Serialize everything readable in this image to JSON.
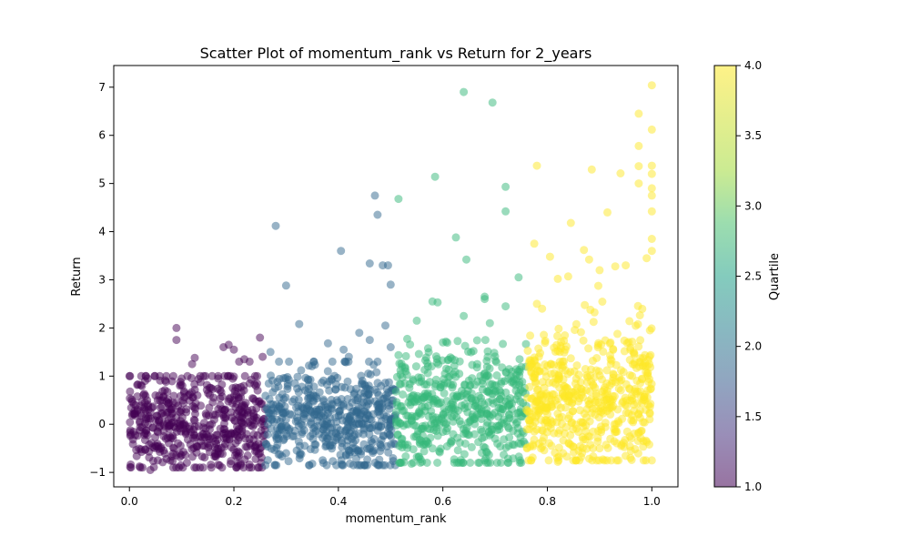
{
  "chart_data": {
    "type": "scatter",
    "title": "Scatter Plot of momentum_rank vs Return for 2_years",
    "xlabel": "momentum_rank",
    "ylabel": "Return",
    "xlim": [
      -0.03,
      1.05
    ],
    "ylim": [
      -1.3,
      7.45
    ],
    "xticks": [
      0.0,
      0.2,
      0.4,
      0.6,
      0.8,
      1.0
    ],
    "xtick_labels": [
      "0.0",
      "0.2",
      "0.4",
      "0.6",
      "0.8",
      "1.0"
    ],
    "yticks": [
      -1,
      0,
      1,
      2,
      3,
      4,
      5,
      6,
      7
    ],
    "ytick_labels": [
      "−1",
      "0",
      "1",
      "2",
      "3",
      "4",
      "5",
      "6",
      "7"
    ],
    "grid": false,
    "point_alpha": 0.5,
    "colorbar": {
      "label": "Quartile",
      "range": [
        1.0,
        4.0
      ],
      "ticks": [
        1.0,
        1.5,
        2.0,
        2.5,
        3.0,
        3.5,
        4.0
      ],
      "tick_labels": [
        "1.0",
        "1.5",
        "2.0",
        "2.5",
        "3.0",
        "3.5",
        "4.0"
      ],
      "colormap": "viridis"
    },
    "series": [
      {
        "quartile": 1,
        "color": "#440154",
        "x_range": [
          0.0,
          0.26
        ],
        "points": [
          [
            0.02,
            0.06
          ],
          [
            0.025,
            -0.9
          ],
          [
            0.03,
            0.9
          ],
          [
            0.035,
            0.95
          ],
          [
            0.04,
            -0.95
          ],
          [
            0.05,
            0.6
          ],
          [
            0.06,
            -0.5
          ],
          [
            0.07,
            0.88
          ],
          [
            0.08,
            0.3
          ],
          [
            0.09,
            2.0
          ],
          [
            0.09,
            1.75
          ],
          [
            0.1,
            0.95
          ],
          [
            0.11,
            -0.8
          ],
          [
            0.12,
            1.25
          ],
          [
            0.125,
            1.38
          ],
          [
            0.13,
            0.6
          ],
          [
            0.15,
            -0.4
          ],
          [
            0.17,
            0.95
          ],
          [
            0.18,
            1.6
          ],
          [
            0.19,
            1.65
          ],
          [
            0.2,
            1.55
          ],
          [
            0.21,
            1.3
          ],
          [
            0.22,
            1.35
          ],
          [
            0.23,
            1.3
          ],
          [
            0.25,
            1.8
          ],
          [
            0.25,
            -0.6
          ],
          [
            0.255,
            1.4
          ],
          [
            0.16,
            0.2
          ],
          [
            0.04,
            0.25
          ],
          [
            0.14,
            -0.2
          ],
          [
            0.2,
            0.5
          ],
          [
            0.07,
            -0.3
          ]
        ],
        "cluster": {
          "y_core": [
            -0.6,
            0.6
          ],
          "y_spread": [
            -0.9,
            1.0
          ],
          "count": 520
        }
      },
      {
        "quartile": 2,
        "color": "#31688e",
        "x_range": [
          0.26,
          0.51
        ],
        "points": [
          [
            0.28,
            4.12
          ],
          [
            0.27,
            1.5
          ],
          [
            0.3,
            2.88
          ],
          [
            0.325,
            2.08
          ],
          [
            0.38,
            1.68
          ],
          [
            0.405,
            3.6
          ],
          [
            0.41,
            1.55
          ],
          [
            0.44,
            1.9
          ],
          [
            0.46,
            1.75
          ],
          [
            0.47,
            4.75
          ],
          [
            0.475,
            4.35
          ],
          [
            0.46,
            3.34
          ],
          [
            0.485,
            3.3
          ],
          [
            0.495,
            3.3
          ],
          [
            0.5,
            2.9
          ],
          [
            0.49,
            2.05
          ],
          [
            0.45,
            -0.85
          ],
          [
            0.47,
            -0.8
          ],
          [
            0.3,
            -0.6
          ],
          [
            0.35,
            -0.82
          ],
          [
            0.42,
            1.4
          ],
          [
            0.5,
            1.6
          ],
          [
            0.38,
            0.3
          ],
          [
            0.33,
            -0.2
          ]
        ],
        "cluster": {
          "y_core": [
            -0.5,
            0.7
          ],
          "y_spread": [
            -0.85,
            1.3
          ],
          "count": 520
        }
      },
      {
        "quartile": 3,
        "color": "#35b779",
        "x_range": [
          0.51,
          0.76
        ],
        "points": [
          [
            0.64,
            6.9
          ],
          [
            0.695,
            6.68
          ],
          [
            0.585,
            5.14
          ],
          [
            0.515,
            4.68
          ],
          [
            0.72,
            4.93
          ],
          [
            0.72,
            4.42
          ],
          [
            0.625,
            3.88
          ],
          [
            0.645,
            3.42
          ],
          [
            0.745,
            3.05
          ],
          [
            0.68,
            2.6
          ],
          [
            0.68,
            2.65
          ],
          [
            0.58,
            2.55
          ],
          [
            0.59,
            2.53
          ],
          [
            0.64,
            2.25
          ],
          [
            0.69,
            2.1
          ],
          [
            0.72,
            2.45
          ],
          [
            0.55,
            2.15
          ],
          [
            0.6,
            1.7
          ],
          [
            0.54,
            -0.82
          ],
          [
            0.56,
            -0.78
          ],
          [
            0.68,
            -0.75
          ],
          [
            0.75,
            -0.8
          ],
          [
            0.62,
            0.4
          ],
          [
            0.7,
            -0.3
          ]
        ],
        "cluster": {
          "y_core": [
            -0.4,
            1.0
          ],
          "y_spread": [
            -0.8,
            1.8
          ],
          "count": 520
        }
      },
      {
        "quartile": 4,
        "color": "#fde725",
        "x_range": [
          0.76,
          1.0
        ],
        "points": [
          [
            1.0,
            7.04
          ],
          [
            0.975,
            6.45
          ],
          [
            0.975,
            5.78
          ],
          [
            1.0,
            6.12
          ],
          [
            0.78,
            5.37
          ],
          [
            0.885,
            5.29
          ],
          [
            0.94,
            5.21
          ],
          [
            0.975,
            5.36
          ],
          [
            0.975,
            5.0
          ],
          [
            1.0,
            5.37
          ],
          [
            1.0,
            5.2
          ],
          [
            1.0,
            4.9
          ],
          [
            1.0,
            4.75
          ],
          [
            1.0,
            4.42
          ],
          [
            0.845,
            4.18
          ],
          [
            0.915,
            4.4
          ],
          [
            0.775,
            3.75
          ],
          [
            0.805,
            3.48
          ],
          [
            0.87,
            3.62
          ],
          [
            0.88,
            3.42
          ],
          [
            1.0,
            3.85
          ],
          [
            1.0,
            3.6
          ],
          [
            0.99,
            3.45
          ],
          [
            0.82,
            3.02
          ],
          [
            0.84,
            3.07
          ],
          [
            0.9,
            3.2
          ],
          [
            0.93,
            3.28
          ],
          [
            0.95,
            3.3
          ],
          [
            0.83,
            -0.6
          ],
          [
            0.86,
            -0.55
          ],
          [
            0.82,
            -0.78
          ],
          [
            1.0,
            -0.75
          ],
          [
            0.9,
            -0.5
          ],
          [
            0.96,
            -0.55
          ],
          [
            0.78,
            2.5
          ],
          [
            0.79,
            2.4
          ]
        ],
        "cluster": {
          "y_core": [
            -0.4,
            1.3
          ],
          "y_spread": [
            -0.75,
            3.0
          ],
          "count": 560
        }
      }
    ]
  }
}
